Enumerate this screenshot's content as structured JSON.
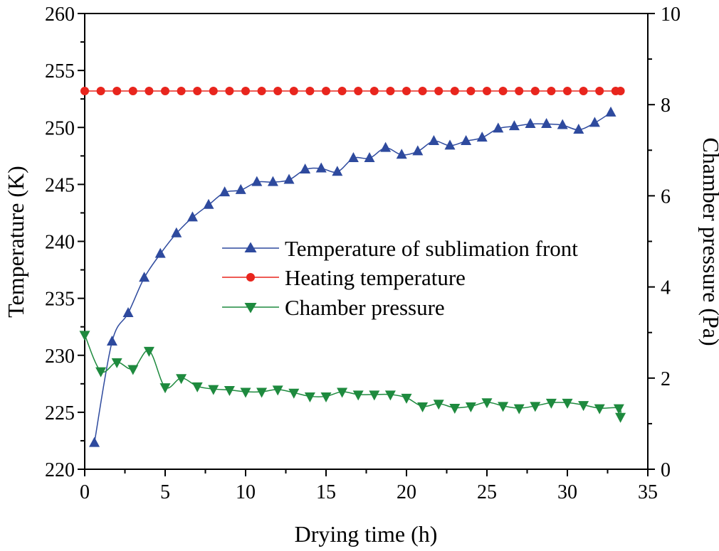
{
  "chart_data": {
    "type": "line",
    "title": "",
    "xlabel": "Drying time (h)",
    "ylabel": "Temperature (K)",
    "y2label": "Chamber pressure (Pa)",
    "xlim": [
      0,
      35
    ],
    "ylim": [
      220,
      260
    ],
    "y2lim": [
      0,
      10
    ],
    "x_ticks": [
      "0",
      "5",
      "10",
      "15",
      "20",
      "25",
      "30",
      "35"
    ],
    "y_ticks": [
      "220",
      "225",
      "230",
      "235",
      "240",
      "245",
      "250",
      "255",
      "260"
    ],
    "y2_ticks": [
      "0",
      "2",
      "4",
      "6",
      "8",
      "10"
    ],
    "grid": false,
    "legend_position": "center-right",
    "series": [
      {
        "name": "Temperature of sublimation front",
        "axis": "left",
        "marker": "triangle-up",
        "color": "#2e4a9e",
        "x": [
          0.6,
          1.7,
          2.7,
          3.7,
          4.7,
          5.7,
          6.7,
          7.7,
          8.7,
          9.7,
          10.7,
          11.7,
          12.7,
          13.7,
          14.7,
          15.7,
          16.7,
          17.7,
          18.7,
          19.7,
          20.7,
          21.7,
          22.7,
          23.7,
          24.7,
          25.7,
          26.7,
          27.7,
          28.7,
          29.7,
          30.7,
          31.7,
          32.7
        ],
        "y": [
          222.3,
          231.2,
          233.7,
          236.8,
          238.9,
          240.7,
          242.1,
          243.2,
          244.3,
          244.5,
          245.2,
          245.2,
          245.4,
          246.3,
          246.4,
          246.1,
          247.3,
          247.3,
          248.2,
          247.6,
          247.9,
          248.8,
          248.4,
          248.8,
          249.1,
          249.9,
          250.1,
          250.3,
          250.3,
          250.2,
          249.8,
          250.4,
          251.3
        ]
      },
      {
        "name": "Heating temperature",
        "axis": "left",
        "marker": "circle",
        "color": "#e8251d",
        "x": [
          0,
          1,
          2,
          3,
          4,
          5,
          6,
          7,
          8,
          9,
          10,
          11,
          12,
          13,
          14,
          15,
          16,
          17,
          18,
          19,
          20,
          21,
          22,
          23,
          24,
          25,
          26,
          27,
          28,
          29,
          30,
          31,
          32,
          33,
          33.3
        ],
        "y": [
          253.2,
          253.2,
          253.2,
          253.2,
          253.2,
          253.2,
          253.2,
          253.2,
          253.2,
          253.2,
          253.2,
          253.2,
          253.2,
          253.2,
          253.2,
          253.2,
          253.2,
          253.2,
          253.2,
          253.2,
          253.2,
          253.2,
          253.2,
          253.2,
          253.2,
          253.2,
          253.2,
          253.2,
          253.2,
          253.2,
          253.2,
          253.2,
          253.2,
          253.2,
          253.2
        ]
      },
      {
        "name": "Chamber pressure",
        "axis": "right",
        "marker": "triangle-down",
        "color": "#1e8a3e",
        "x": [
          0,
          1,
          2,
          3,
          4,
          5,
          6,
          7,
          8,
          9,
          10,
          11,
          12,
          13,
          14,
          15,
          16,
          17,
          18,
          19,
          20,
          21,
          22,
          23,
          24,
          25,
          26,
          27,
          28,
          29,
          30,
          31,
          32,
          33.2,
          33.3
        ],
        "y": [
          2.95,
          2.15,
          2.35,
          2.2,
          2.6,
          1.8,
          2.0,
          1.82,
          1.76,
          1.74,
          1.7,
          1.7,
          1.75,
          1.68,
          1.6,
          1.6,
          1.7,
          1.64,
          1.64,
          1.64,
          1.57,
          1.38,
          1.44,
          1.35,
          1.38,
          1.47,
          1.39,
          1.34,
          1.39,
          1.46,
          1.46,
          1.41,
          1.34,
          1.34,
          1.15
        ]
      }
    ]
  }
}
